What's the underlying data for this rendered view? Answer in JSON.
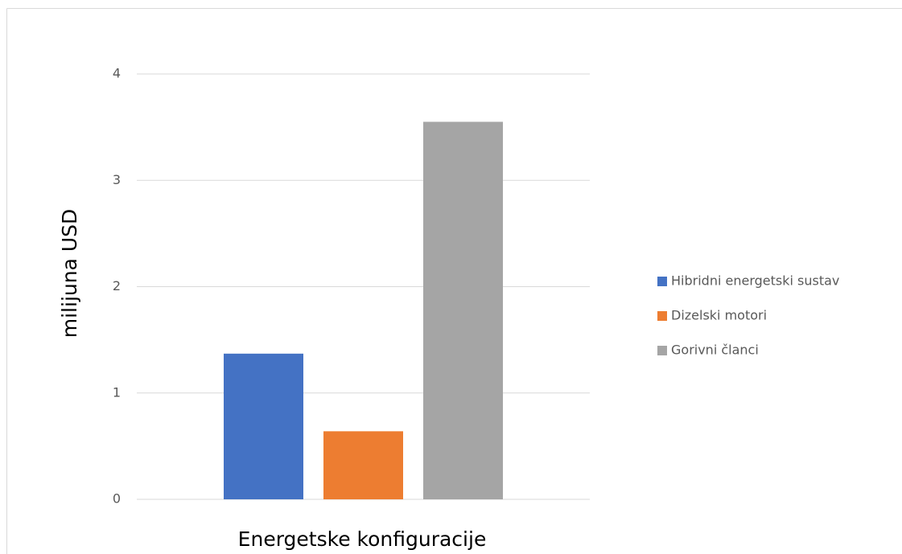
{
  "chart_data": {
    "type": "bar",
    "x_label": "Energetske konfiguracije",
    "y_label": "milijuna USD",
    "categories": [
      null
    ],
    "series": [
      {
        "name": "Hibridni energetski sustav",
        "color": "#4472c4",
        "values": [
          1.37
        ]
      },
      {
        "name": "Dizelski motori",
        "color": "#ed7d31",
        "values": [
          0.64
        ]
      },
      {
        "name": "Gorivni članci",
        "color": "#a5a5a5",
        "values": [
          3.55
        ]
      }
    ],
    "ylim": [
      0,
      4
    ],
    "yticks": [
      0,
      1,
      2,
      3,
      4
    ],
    "grid": true,
    "legend": "right"
  }
}
